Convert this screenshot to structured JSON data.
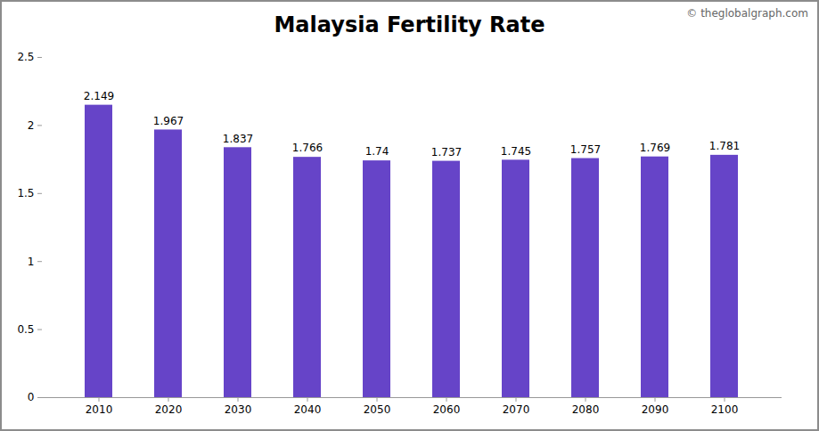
{
  "chart_data": {
    "type": "bar",
    "title": "Malaysia Fertility Rate",
    "annotations": [
      "© theglobalgraph.com"
    ],
    "categories": [
      "2010",
      "2020",
      "2030",
      "2040",
      "2050",
      "2060",
      "2070",
      "2080",
      "2090",
      "2100"
    ],
    "values": [
      2.149,
      1.967,
      1.837,
      1.766,
      1.74,
      1.737,
      1.745,
      1.757,
      1.769,
      1.781
    ],
    "color": "#6644c8",
    "ylim": [
      0,
      2.5
    ],
    "yticks": [
      0,
      0.5,
      1,
      1.5,
      2,
      2.5
    ],
    "grid": false,
    "data_labels": true
  }
}
